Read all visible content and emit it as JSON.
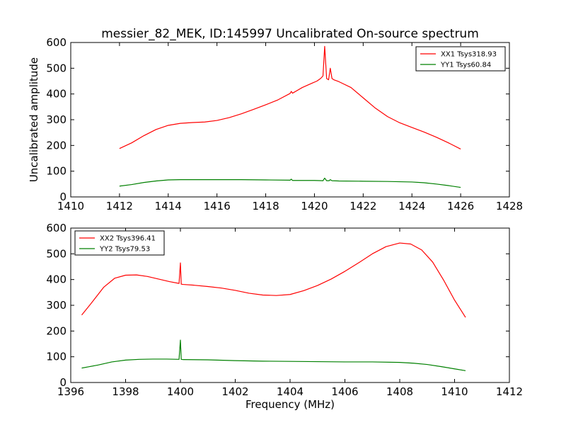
{
  "chart_data": [
    {
      "type": "line",
      "title": "messier_82_MEK, ID:145997 Uncalibrated On-source spectrum",
      "xlabel": "",
      "ylabel": "Uncalibrated amplitude",
      "xlim": [
        1410,
        1428
      ],
      "ylim": [
        0,
        600
      ],
      "xticks": [
        1410,
        1412,
        1414,
        1416,
        1418,
        1420,
        1422,
        1424,
        1426,
        1428
      ],
      "yticks": [
        0,
        100,
        200,
        300,
        400,
        500,
        600
      ],
      "legend_position": "top-right",
      "series": [
        {
          "name": "XX1 Tsys318.93",
          "color": "#ff0000",
          "x": [
            1412,
            1412.5,
            1413,
            1413.5,
            1414,
            1414.5,
            1415,
            1415.5,
            1416,
            1416.5,
            1417,
            1417.5,
            1418,
            1418.5,
            1419,
            1419.05,
            1419.1,
            1419.5,
            1419.9,
            1420.1,
            1420.25,
            1420.35,
            1420.42,
            1420.5,
            1420.58,
            1420.65,
            1420.72,
            1420.8,
            1421,
            1421.5,
            1422,
            1422.5,
            1423,
            1423.5,
            1424,
            1424.5,
            1425,
            1425.5,
            1426
          ],
          "y": [
            188,
            210,
            238,
            262,
            278,
            286,
            289,
            291,
            297,
            308,
            323,
            340,
            358,
            377,
            402,
            410,
            403,
            425,
            442,
            450,
            460,
            470,
            585,
            460,
            455,
            500,
            460,
            455,
            448,
            425,
            385,
            345,
            312,
            288,
            270,
            252,
            232,
            210,
            186
          ]
        },
        {
          "name": "YY1 Tsys60.84",
          "color": "#008000",
          "x": [
            1412,
            1412.5,
            1413,
            1413.5,
            1414,
            1414.5,
            1415,
            1416,
            1417,
            1418,
            1419,
            1419.05,
            1419.1,
            1420,
            1420.35,
            1420.42,
            1420.5,
            1420.6,
            1420.65,
            1420.72,
            1421,
            1422,
            1423,
            1424,
            1424.5,
            1425,
            1425.5,
            1426
          ],
          "y": [
            42,
            48,
            56,
            62,
            66,
            67,
            67,
            67,
            67,
            66,
            65,
            69,
            64,
            64,
            63,
            73,
            63,
            63,
            67,
            63,
            62,
            61,
            60,
            58,
            55,
            50,
            44,
            37
          ]
        }
      ]
    },
    {
      "type": "line",
      "title": "",
      "xlabel": "Frequency (MHz)",
      "ylabel": "",
      "xlim": [
        1396,
        1412
      ],
      "ylim": [
        0,
        600
      ],
      "xticks": [
        1396,
        1398,
        1400,
        1402,
        1404,
        1406,
        1408,
        1410,
        1412
      ],
      "yticks": [
        0,
        100,
        200,
        300,
        400,
        500,
        600
      ],
      "legend_position": "top-left",
      "series": [
        {
          "name": "XX2 Tsys396.41",
          "color": "#ff0000",
          "x": [
            1396.4,
            1396.8,
            1397.2,
            1397.6,
            1398,
            1398.4,
            1398.8,
            1399.2,
            1399.6,
            1399.95,
            1400,
            1400.03,
            1400.1,
            1400.5,
            1401,
            1401.5,
            1402,
            1402.5,
            1403,
            1403.5,
            1404,
            1404.5,
            1405,
            1405.5,
            1406,
            1406.5,
            1407,
            1407.5,
            1408,
            1408.4,
            1408.8,
            1409.2,
            1409.6,
            1410,
            1410.4
          ],
          "y": [
            262,
            315,
            370,
            405,
            417,
            418,
            412,
            402,
            392,
            385,
            465,
            382,
            381,
            378,
            373,
            367,
            358,
            347,
            340,
            338,
            342,
            357,
            377,
            402,
            432,
            465,
            500,
            528,
            542,
            538,
            515,
            468,
            398,
            320,
            253
          ]
        },
        {
          "name": "YY2 Tsys79.53",
          "color": "#008000",
          "x": [
            1396.4,
            1397,
            1397.5,
            1398,
            1398.5,
            1399,
            1399.5,
            1399.95,
            1400,
            1400.03,
            1400.1,
            1401,
            1402,
            1403,
            1404,
            1405,
            1406,
            1407,
            1408,
            1408.5,
            1409,
            1409.5,
            1410,
            1410.4
          ],
          "y": [
            56,
            68,
            80,
            87,
            90,
            91,
            91,
            90,
            165,
            90,
            89,
            88,
            85,
            83,
            82,
            81,
            80,
            80,
            78,
            75,
            70,
            62,
            53,
            46
          ]
        }
      ]
    }
  ]
}
